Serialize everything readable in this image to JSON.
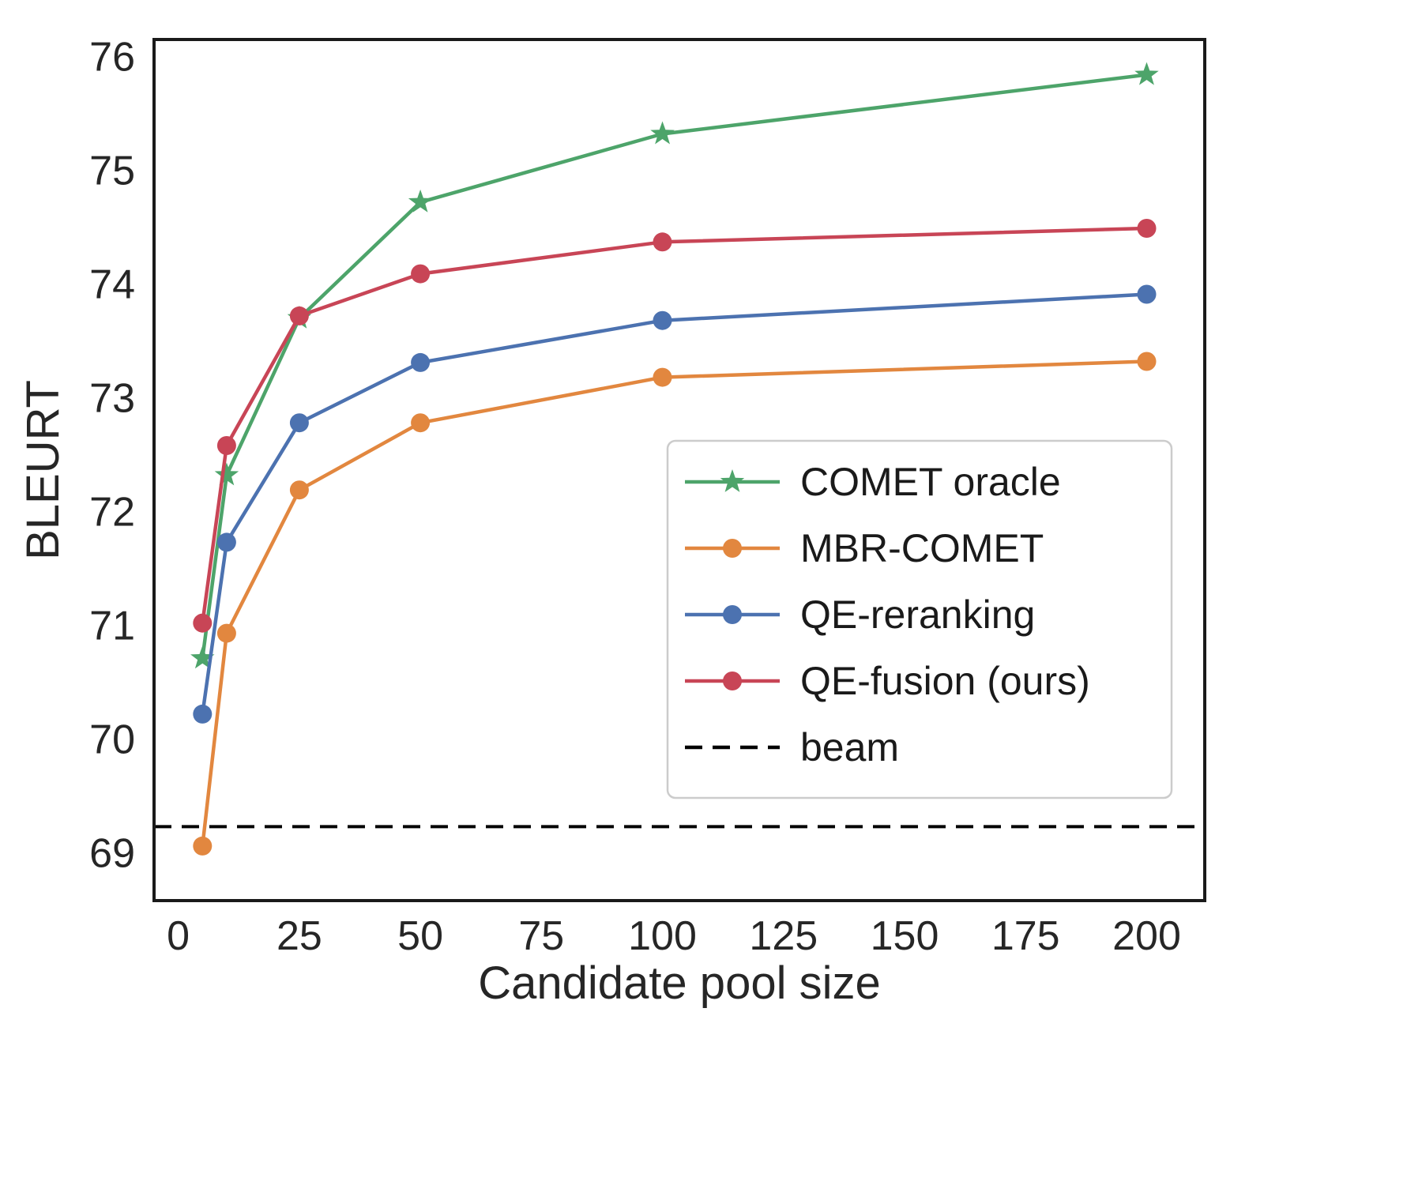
{
  "figure": {
    "background": "#ffffff",
    "text_color": "#262626",
    "spine_color": "#1a1a1a"
  },
  "chart_data": {
    "type": "line",
    "title": "",
    "xlabel": "Candidate pool size",
    "ylabel": "BLEURT",
    "x": [
      5,
      10,
      25,
      50,
      100,
      200
    ],
    "xlim": [
      -5,
      212
    ],
    "ylim": [
      68.58,
      76.15
    ],
    "xticks": [
      0,
      25,
      50,
      75,
      100,
      125,
      150,
      175,
      200
    ],
    "yticks": [
      69,
      70,
      71,
      72,
      73,
      74,
      75,
      76
    ],
    "grid": false,
    "series": [
      {
        "name": "COMET oracle",
        "color": "#4da46a",
        "marker": "star",
        "values": [
          70.71,
          72.32,
          73.7,
          74.72,
          75.32,
          75.84
        ]
      },
      {
        "name": "MBR-COMET",
        "color": "#e2873f",
        "marker": "circle",
        "values": [
          69.06,
          70.93,
          72.19,
          72.78,
          73.18,
          73.32
        ]
      },
      {
        "name": "QE-reranking",
        "color": "#4c72b0",
        "marker": "circle",
        "values": [
          70.22,
          71.73,
          72.78,
          73.31,
          73.68,
          73.91
        ]
      },
      {
        "name": "QE-fusion (ours)",
        "color": "#c84556",
        "marker": "circle",
        "values": [
          71.02,
          72.58,
          73.72,
          74.09,
          74.37,
          74.49
        ]
      }
    ],
    "hline": {
      "name": "beam",
      "value": 69.23,
      "color": "#000000",
      "style": "dashed"
    },
    "legend": {
      "position": "center-right",
      "entries": [
        "COMET oracle",
        "MBR-COMET",
        "QE-reranking",
        "QE-fusion (ours)",
        "beam"
      ]
    }
  }
}
